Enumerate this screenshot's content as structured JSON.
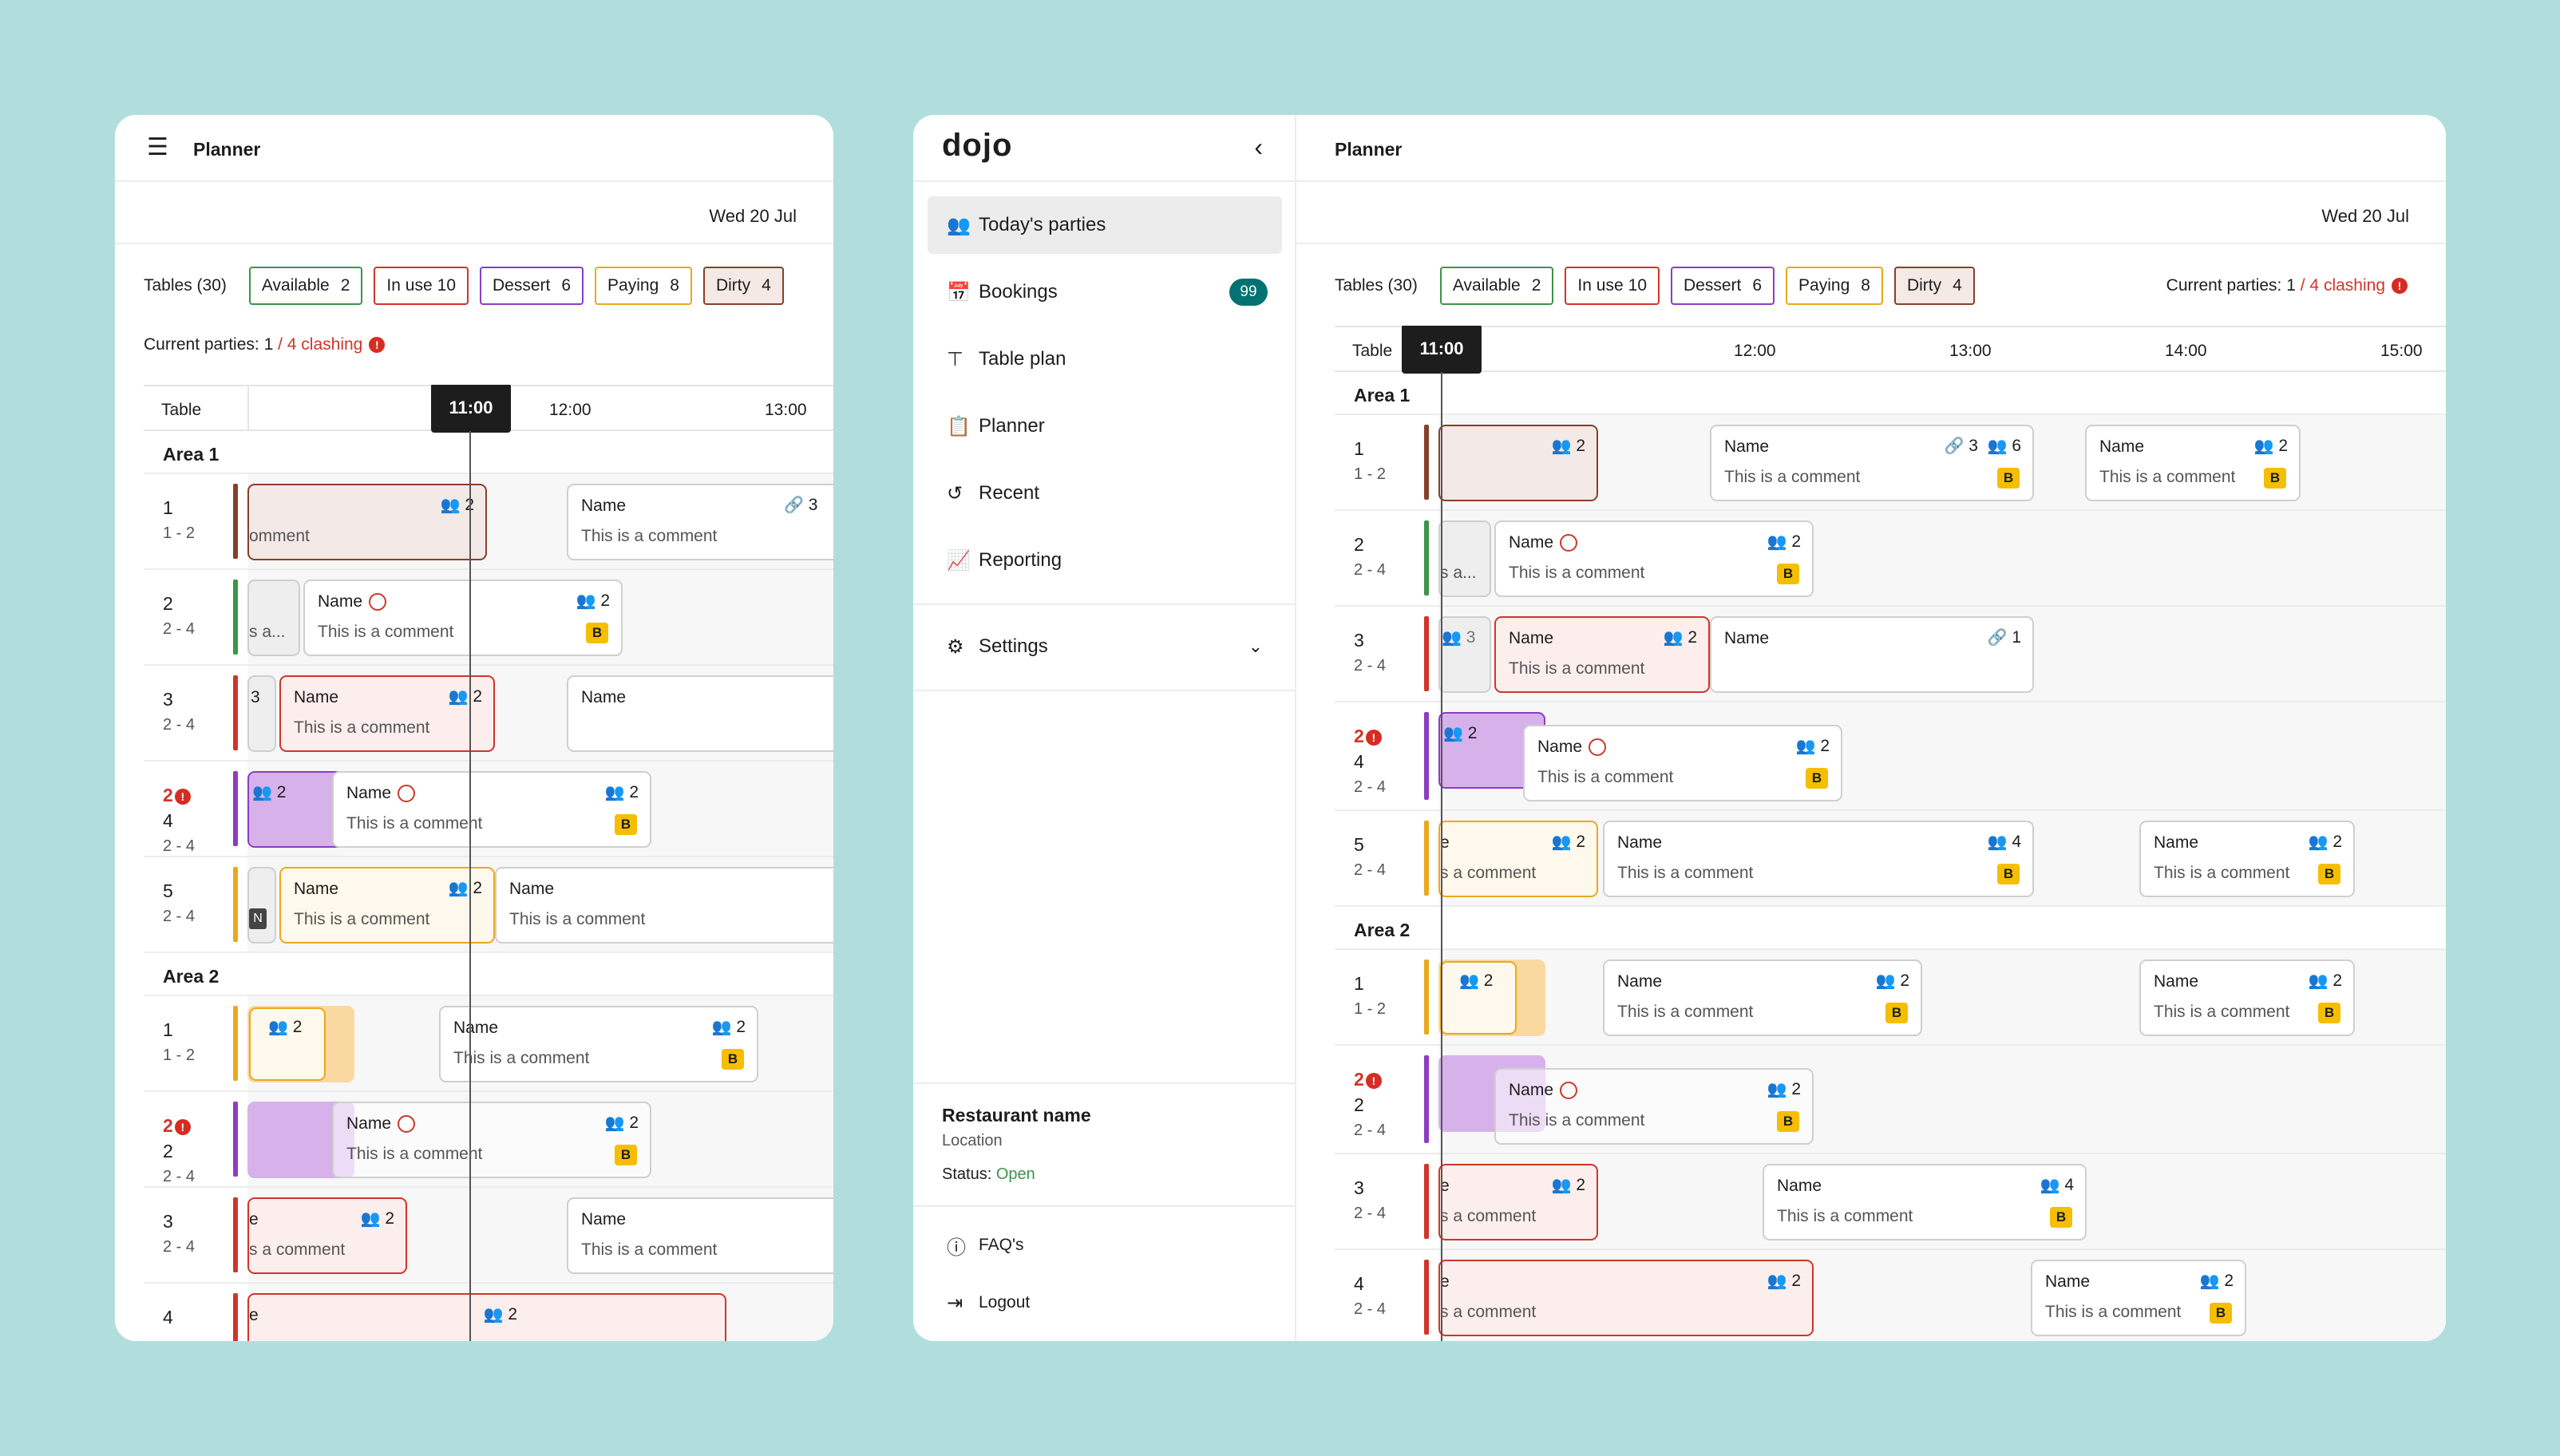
{
  "colors": {
    "available": "#3c9548",
    "in_use": "#d0352b",
    "dessert": "#8c3dc2",
    "paying": "#e9a91c",
    "dirty": "#86402a",
    "teal": "#007272"
  },
  "mobile": {
    "title": "Planner",
    "date": "Wed 20 Jul",
    "tables_label": "Tables (30)",
    "chips": [
      {
        "label": "Available",
        "count": "2"
      },
      {
        "label": "In use",
        "count": "10"
      },
      {
        "label": "Dessert",
        "count": "6"
      },
      {
        "label": "Paying",
        "count": "8"
      },
      {
        "label": "Dirty",
        "count": "4"
      }
    ],
    "current_label": "Current parties:",
    "current_count": "1",
    "clashing": "/ 4 clashing",
    "table_header": "Table",
    "now": "11:00",
    "times": [
      "12:00",
      "13:00"
    ],
    "area1": "Area 1",
    "area2": "Area 2",
    "rows": [
      {
        "num": "1",
        "range": "1 - 2"
      },
      {
        "num": "2",
        "range": "2 - 4"
      },
      {
        "num": "3",
        "range": "2 - 4"
      },
      {
        "num": "2",
        "sub": "4",
        "range": "2 - 4"
      },
      {
        "num": "5",
        "range": "2 - 4"
      },
      {
        "num": "1",
        "range": "1 - 2"
      },
      {
        "num": "2",
        "sub": "2",
        "range": "2 - 4"
      },
      {
        "num": "3",
        "range": "2 - 4"
      },
      {
        "num": "4",
        "range": ""
      }
    ],
    "bk": {
      "name": "Name",
      "comment": "This is a comment",
      "comment_cut": "omment",
      "comment_cut2": "s a...",
      "comment_cut3": "s a comment",
      "two": "2",
      "three": "3",
      "badge": "B",
      "e": "e",
      "n": "N"
    }
  },
  "desktop": {
    "logo": "dojo",
    "title": "Planner",
    "date": "Wed 20 Jul",
    "tables_label": "Tables (30)",
    "chips": [
      {
        "label": "Available",
        "count": "2"
      },
      {
        "label": "In use",
        "count": "10"
      },
      {
        "label": "Dessert",
        "count": "6"
      },
      {
        "label": "Paying",
        "count": "8"
      },
      {
        "label": "Dirty",
        "count": "4"
      }
    ],
    "current_label": "Current parties:",
    "current_count": "1",
    "clashing": "/ 4 clashing",
    "nav": [
      {
        "label": "Today's parties",
        "icon": "users-icon"
      },
      {
        "label": "Bookings",
        "icon": "calendar-icon",
        "badge": "99"
      },
      {
        "label": "Table plan",
        "icon": "table-icon"
      },
      {
        "label": "Planner",
        "icon": "clipboard-icon"
      },
      {
        "label": "Recent",
        "icon": "history-icon"
      },
      {
        "label": "Reporting",
        "icon": "chart-icon"
      }
    ],
    "settings": "Settings",
    "restaurant": {
      "name": "Restaurant name",
      "location": "Location",
      "status_label": "Status:",
      "status": "Open"
    },
    "faq": "FAQ's",
    "logout": "Logout",
    "table_header": "Table",
    "now": "11:00",
    "times": [
      "12:00",
      "13:00",
      "14:00",
      "15:00"
    ],
    "area1": "Area 1",
    "area2": "Area 2",
    "rows": [
      {
        "num": "1",
        "range": "1 - 2"
      },
      {
        "num": "2",
        "range": "2 - 4"
      },
      {
        "num": "3",
        "range": "2 - 4"
      },
      {
        "num": "2",
        "sub": "4",
        "range": "2 - 4"
      },
      {
        "num": "5",
        "range": "2 - 4"
      },
      {
        "num": "1",
        "range": "1 - 2"
      },
      {
        "num": "2",
        "sub": "2",
        "range": "2 - 4"
      },
      {
        "num": "3",
        "range": "2 - 4"
      },
      {
        "num": "4",
        "range": "2 - 4"
      }
    ],
    "bk": {
      "name": "Name",
      "comment": "This is a comment",
      "two": "2",
      "three": "3",
      "four": "4",
      "six": "6",
      "one": "1",
      "badge": "B",
      "sa": "s a...",
      "sacomment": "s a comment",
      "e": "e"
    }
  }
}
